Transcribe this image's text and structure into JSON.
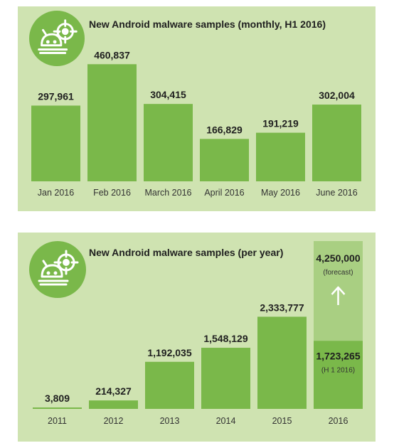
{
  "colors": {
    "panel_background": "#cfe3b1",
    "bar": "#7ab84a",
    "forecast_bar": "#a9cf82",
    "icon_background": "#7ab84a",
    "text": "#1f1f1f"
  },
  "icon": "robot-crosshair-icon",
  "chart_data": [
    {
      "type": "bar",
      "title": "New Android malware samples (monthly, H1 2016)",
      "categories": [
        "Jan 2016",
        "Feb 2016",
        "March 2016",
        "April 2016",
        "May 2016",
        "June 2016"
      ],
      "values": [
        297961,
        460837,
        304415,
        166829,
        191219,
        302004
      ],
      "value_labels": [
        "297,961",
        "460,837",
        "304,415",
        "166,829",
        "191,219",
        "302,004"
      ],
      "ylim": [
        0,
        470000
      ],
      "grid": false,
      "legend": "none"
    },
    {
      "type": "bar",
      "title": "New Android malware samples (per year)",
      "categories": [
        "2011",
        "2012",
        "2013",
        "2014",
        "2015",
        "2016"
      ],
      "values": [
        3809,
        214327,
        1192035,
        1548129,
        2333777,
        1723265
      ],
      "value_labels": [
        "3,809",
        "214,327",
        "1,192,035",
        "1,548,129",
        "2,333,777",
        "1,723,265"
      ],
      "forecast": {
        "category": "2016",
        "value": 4250000,
        "value_label": "4,250,000",
        "note": "(forecast)",
        "partial_note": "(H 1 2016)"
      },
      "ylim": [
        0,
        4250000
      ],
      "grid": false,
      "legend": "none"
    }
  ]
}
